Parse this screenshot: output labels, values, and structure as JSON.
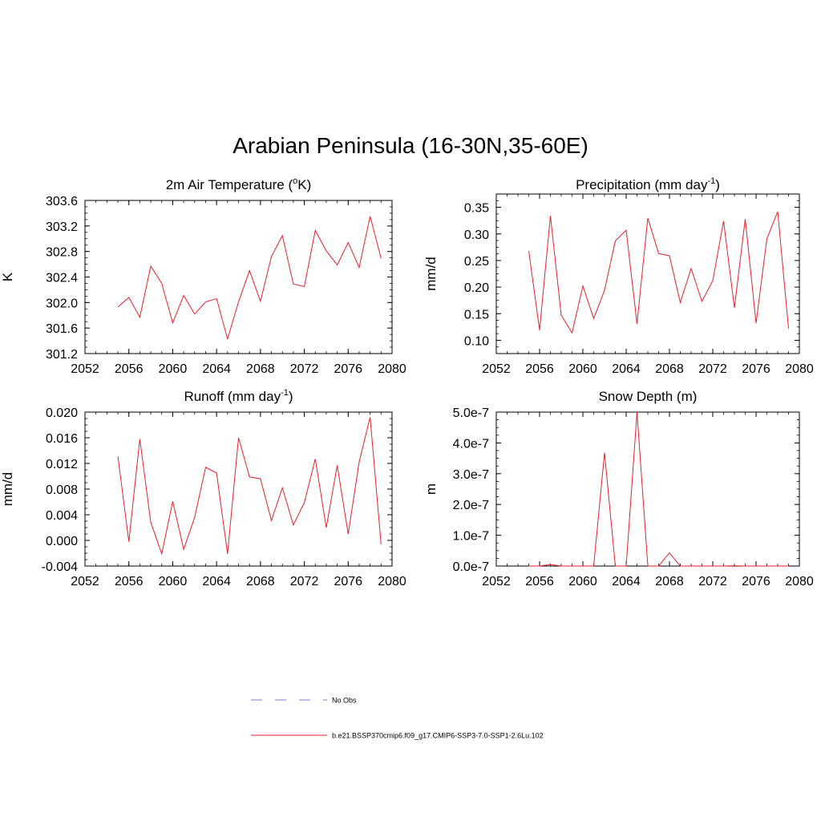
{
  "page": {
    "title": "Arabian Peninsula (16-30N,35-60E)"
  },
  "legend": {
    "obs_label": "No Obs",
    "obs_color": "#9999dd",
    "model_label": "b.e21.BSSP370cmip6.f09_g17.CMIP6-SSP3-7.0-SSP1-2.6Lu.102",
    "model_color": "#e8202a"
  },
  "chart_data": [
    {
      "type": "line",
      "title": "2m Air Temperature (",
      "title_sup": "o",
      "title_tail": "K)",
      "ylabel": "K",
      "xlim": [
        2052,
        2080
      ],
      "ylim": [
        301.2,
        303.6
      ],
      "xticks": [
        "2052",
        "2056",
        "2060",
        "2064",
        "2068",
        "2072",
        "2076",
        "2080"
      ],
      "xtick_values": [
        2052,
        2056,
        2060,
        2064,
        2068,
        2072,
        2076,
        2080
      ],
      "yticks": [
        "301.2",
        "301.6",
        "302.0",
        "302.4",
        "302.8",
        "303.2",
        "303.6"
      ],
      "ytick_values": [
        301.2,
        301.6,
        302.0,
        302.4,
        302.8,
        303.2,
        303.6
      ],
      "series": [
        {
          "color": "#e8202a",
          "x": [
            2055,
            2056,
            2057,
            2058,
            2059,
            2060,
            2061,
            2062,
            2063,
            2064,
            2065,
            2066,
            2067,
            2068,
            2069,
            2070,
            2071,
            2072,
            2073,
            2074,
            2075,
            2076,
            2077,
            2078,
            2079
          ],
          "y": [
            301.93,
            302.08,
            301.77,
            302.57,
            302.3,
            301.68,
            302.11,
            301.82,
            302.01,
            302.06,
            301.43,
            302.01,
            302.5,
            302.02,
            302.72,
            303.05,
            302.29,
            302.25,
            303.13,
            302.81,
            302.59,
            302.94,
            302.55,
            303.35,
            302.69
          ]
        }
      ]
    },
    {
      "type": "line",
      "title": "Precipitation (mm day",
      "title_sup": "-1",
      "title_tail": ")",
      "ylabel": "mm/d",
      "xlim": [
        2052,
        2080
      ],
      "ylim": [
        0.075,
        0.375
      ],
      "xticks": [
        "2052",
        "2056",
        "2060",
        "2064",
        "2068",
        "2072",
        "2076",
        "2080"
      ],
      "xtick_values": [
        2052,
        2056,
        2060,
        2064,
        2068,
        2072,
        2076,
        2080
      ],
      "yticks": [
        "0.10",
        "0.15",
        "0.20",
        "0.25",
        "0.30",
        "0.35"
      ],
      "ytick_values": [
        0.1,
        0.15,
        0.2,
        0.25,
        0.3,
        0.35
      ],
      "series": [
        {
          "color": "#e8202a",
          "x": [
            2055,
            2056,
            2057,
            2058,
            2059,
            2060,
            2061,
            2062,
            2063,
            2064,
            2065,
            2066,
            2067,
            2068,
            2069,
            2070,
            2071,
            2072,
            2073,
            2074,
            2075,
            2076,
            2077,
            2078,
            2079
          ],
          "y": [
            0.268,
            0.119,
            0.334,
            0.147,
            0.114,
            0.202,
            0.141,
            0.194,
            0.287,
            0.307,
            0.131,
            0.33,
            0.263,
            0.259,
            0.171,
            0.235,
            0.173,
            0.212,
            0.324,
            0.161,
            0.328,
            0.132,
            0.291,
            0.342,
            0.122
          ]
        }
      ]
    },
    {
      "type": "line",
      "title": "Runoff (mm day",
      "title_sup": "-1",
      "title_tail": ")",
      "ylabel": "mm/d",
      "xlim": [
        2052,
        2080
      ],
      "ylim": [
        -0.004,
        0.02
      ],
      "xticks": [
        "2052",
        "2056",
        "2060",
        "2064",
        "2068",
        "2072",
        "2076",
        "2080"
      ],
      "xtick_values": [
        2052,
        2056,
        2060,
        2064,
        2068,
        2072,
        2076,
        2080
      ],
      "yticks": [
        "-0.004",
        "0.000",
        "0.004",
        "0.008",
        "0.012",
        "0.016",
        "0.020"
      ],
      "ytick_values": [
        -0.004,
        0.0,
        0.004,
        0.008,
        0.012,
        0.016,
        0.02
      ],
      "series": [
        {
          "color": "#e8202a",
          "x": [
            2055,
            2056,
            2057,
            2058,
            2059,
            2060,
            2061,
            2062,
            2063,
            2064,
            2065,
            2066,
            2067,
            2068,
            2069,
            2070,
            2071,
            2072,
            2073,
            2074,
            2075,
            2076,
            2077,
            2078,
            2079
          ],
          "y": [
            0.0131,
            -0.0002,
            0.0158,
            0.0028,
            -0.0021,
            0.0061,
            -0.0014,
            0.0036,
            0.0114,
            0.0105,
            -0.0021,
            0.016,
            0.0099,
            0.0096,
            0.0031,
            0.0082,
            0.0024,
            0.0059,
            0.0127,
            0.002,
            0.0117,
            0.001,
            0.0122,
            0.0192,
            -0.0006
          ]
        }
      ]
    },
    {
      "type": "line",
      "title": "Snow Depth (m)",
      "title_sup": "",
      "title_tail": "",
      "ylabel": "m",
      "xlim": [
        2052,
        2080
      ],
      "ylim": [
        0.0,
        5e-07
      ],
      "xticks": [
        "2052",
        "2056",
        "2060",
        "2064",
        "2068",
        "2072",
        "2076",
        "2080"
      ],
      "xtick_values": [
        2052,
        2056,
        2060,
        2064,
        2068,
        2072,
        2076,
        2080
      ],
      "yticks": [
        "0.0e-7",
        "1.0e-7",
        "2.0e-7",
        "3.0e-7",
        "4.0e-7",
        "5.0e-7"
      ],
      "ytick_values": [
        0.0,
        1e-07,
        2e-07,
        3e-07,
        4e-07,
        5e-07
      ],
      "series": [
        {
          "color": "#e8202a",
          "x": [
            2055,
            2056,
            2057,
            2058,
            2059,
            2060,
            2061,
            2062,
            2063,
            2064,
            2065,
            2066,
            2067,
            2068,
            2069,
            2070,
            2071,
            2072,
            2073,
            2074,
            2075,
            2076,
            2077,
            2078,
            2079
          ],
          "y": [
            0.0,
            0.0,
            5e-09,
            0.0,
            0.0,
            0.0,
            0.0,
            3.68e-07,
            0.0,
            0.0,
            5e-07,
            0.0,
            0.0,
            4.3e-08,
            0.0,
            0.0,
            0.0,
            0.0,
            0.0,
            1e-09,
            0.0,
            0.0,
            0.0,
            0.0,
            0.0
          ]
        }
      ]
    }
  ]
}
